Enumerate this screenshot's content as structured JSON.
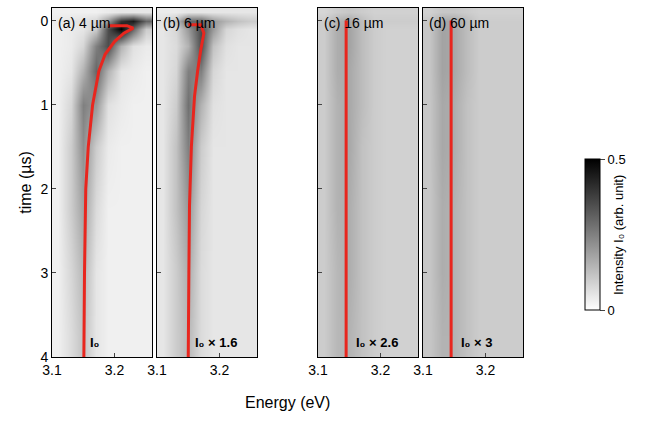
{
  "chart_data": {
    "type": "heatmap",
    "x_label": "Energy (eV)",
    "y_label": "time (µs)",
    "xlim": [
      3.1,
      3.26
    ],
    "xticks": [
      3.1,
      3.2
    ],
    "ylim": [
      4,
      -0.15
    ],
    "yticks": [
      0,
      1,
      2,
      3,
      4
    ],
    "x": [
      3.11,
      3.13,
      3.15,
      3.17,
      3.19,
      3.21,
      3.23,
      3.25
    ],
    "y": [
      -0.1,
      0.0,
      0.1,
      0.3,
      0.6,
      1.0,
      1.5,
      2.25,
      3.0,
      3.75
    ],
    "colorbar": {
      "title": "Intensity I₀ (arb. unit)",
      "range": [
        0,
        0.5
      ],
      "ticks": [
        0,
        0.5
      ],
      "colors": [
        "#ffffff",
        "#000000"
      ]
    },
    "panels": [
      {
        "title": "(a) 4 µm",
        "annotation": "I₀",
        "z": [
          [
            0.03,
            0.03,
            0.03,
            0.03,
            0.04,
            0.05,
            0.05,
            0.05
          ],
          [
            0.04,
            0.05,
            0.06,
            0.08,
            0.2,
            0.4,
            0.45,
            0.3
          ],
          [
            0.03,
            0.04,
            0.05,
            0.1,
            0.35,
            0.5,
            0.3,
            0.1
          ],
          [
            0.03,
            0.04,
            0.08,
            0.25,
            0.35,
            0.15,
            0.06,
            0.04
          ],
          [
            0.03,
            0.05,
            0.15,
            0.3,
            0.15,
            0.05,
            0.04,
            0.03
          ],
          [
            0.03,
            0.08,
            0.25,
            0.2,
            0.06,
            0.04,
            0.03,
            0.03
          ],
          [
            0.03,
            0.1,
            0.22,
            0.1,
            0.04,
            0.03,
            0.03,
            0.03
          ],
          [
            0.03,
            0.1,
            0.18,
            0.07,
            0.03,
            0.03,
            0.03,
            0.03
          ],
          [
            0.03,
            0.08,
            0.14,
            0.05,
            0.03,
            0.03,
            0.03,
            0.03
          ],
          [
            0.03,
            0.07,
            0.12,
            0.05,
            0.03,
            0.03,
            0.03,
            0.03
          ]
        ],
        "line": {
          "color": "#e8261e",
          "x": [
            3.19,
            3.22,
            3.23,
            3.215,
            3.2,
            3.185,
            3.175,
            3.165,
            3.158,
            3.154,
            3.152,
            3.151
          ],
          "values": [
            0.06,
            0.06,
            0.09,
            0.15,
            0.25,
            0.4,
            0.6,
            1.0,
            1.5,
            2.0,
            3.0,
            4.0
          ]
        }
      },
      {
        "title": "(b) 6 µm",
        "annotation": "I₀ × 1.6",
        "tick_labels": "x",
        "z": [
          [
            0.04,
            0.04,
            0.05,
            0.05,
            0.05,
            0.05,
            0.05,
            0.05
          ],
          [
            0.06,
            0.12,
            0.3,
            0.3,
            0.2,
            0.15,
            0.12,
            0.1
          ],
          [
            0.05,
            0.08,
            0.2,
            0.35,
            0.2,
            0.08,
            0.06,
            0.05
          ],
          [
            0.05,
            0.07,
            0.15,
            0.35,
            0.12,
            0.06,
            0.05,
            0.05
          ],
          [
            0.05,
            0.08,
            0.25,
            0.25,
            0.08,
            0.05,
            0.05,
            0.05
          ],
          [
            0.05,
            0.1,
            0.28,
            0.15,
            0.06,
            0.05,
            0.05,
            0.05
          ],
          [
            0.05,
            0.12,
            0.25,
            0.1,
            0.05,
            0.05,
            0.05,
            0.05
          ],
          [
            0.05,
            0.12,
            0.2,
            0.08,
            0.05,
            0.05,
            0.05,
            0.05
          ],
          [
            0.05,
            0.1,
            0.16,
            0.07,
            0.05,
            0.05,
            0.05,
            0.05
          ],
          [
            0.05,
            0.1,
            0.14,
            0.07,
            0.05,
            0.05,
            0.05,
            0.05
          ]
        ],
        "line": {
          "color": "#e8261e",
          "x": [
            3.15,
            3.17,
            3.175,
            3.17,
            3.165,
            3.16,
            3.155,
            3.152,
            3.151,
            3.15
          ],
          "values": [
            0.05,
            0.05,
            0.15,
            0.35,
            0.6,
            0.9,
            1.5,
            2.2,
            3.0,
            4.0
          ]
        }
      },
      {
        "title": "(c) 16 µm",
        "annotation": "I₀ × 2.6",
        "tick_labels": "x",
        "z": [
          [
            0.08,
            0.1,
            0.11,
            0.1,
            0.09,
            0.09,
            0.09,
            0.09
          ],
          [
            0.1,
            0.15,
            0.17,
            0.13,
            0.1,
            0.1,
            0.1,
            0.1
          ],
          [
            0.1,
            0.16,
            0.18,
            0.13,
            0.1,
            0.09,
            0.09,
            0.09
          ],
          [
            0.1,
            0.16,
            0.18,
            0.13,
            0.1,
            0.09,
            0.09,
            0.09
          ],
          [
            0.1,
            0.16,
            0.17,
            0.13,
            0.1,
            0.09,
            0.09,
            0.09
          ],
          [
            0.1,
            0.15,
            0.17,
            0.13,
            0.1,
            0.09,
            0.09,
            0.09
          ],
          [
            0.1,
            0.15,
            0.17,
            0.12,
            0.1,
            0.09,
            0.09,
            0.09
          ],
          [
            0.1,
            0.15,
            0.16,
            0.12,
            0.1,
            0.09,
            0.09,
            0.09
          ],
          [
            0.1,
            0.14,
            0.16,
            0.12,
            0.1,
            0.09,
            0.09,
            0.09
          ],
          [
            0.1,
            0.14,
            0.15,
            0.12,
            0.1,
            0.09,
            0.09,
            0.09
          ]
        ],
        "line": {
          "color": "#e8261e",
          "x": [
            3.145,
            3.145
          ],
          "values": [
            0,
            4
          ]
        }
      },
      {
        "title": "(d) 60 µm",
        "annotation": "I₀ × 3",
        "tick_labels": "x",
        "z": [
          [
            0.09,
            0.11,
            0.11,
            0.1,
            0.09,
            0.09,
            0.09,
            0.09
          ],
          [
            0.11,
            0.17,
            0.17,
            0.13,
            0.1,
            0.1,
            0.1,
            0.1
          ],
          [
            0.11,
            0.18,
            0.17,
            0.13,
            0.1,
            0.1,
            0.1,
            0.1
          ],
          [
            0.11,
            0.18,
            0.17,
            0.13,
            0.1,
            0.1,
            0.1,
            0.1
          ],
          [
            0.11,
            0.18,
            0.17,
            0.13,
            0.1,
            0.1,
            0.1,
            0.1
          ],
          [
            0.11,
            0.17,
            0.16,
            0.12,
            0.1,
            0.1,
            0.1,
            0.1
          ],
          [
            0.11,
            0.17,
            0.16,
            0.12,
            0.1,
            0.1,
            0.1,
            0.1
          ],
          [
            0.11,
            0.16,
            0.15,
            0.12,
            0.1,
            0.1,
            0.1,
            0.1
          ],
          [
            0.11,
            0.16,
            0.15,
            0.12,
            0.1,
            0.1,
            0.1,
            0.1
          ],
          [
            0.11,
            0.15,
            0.15,
            0.12,
            0.1,
            0.1,
            0.1,
            0.1
          ]
        ],
        "line": {
          "color": "#e8261e",
          "x": [
            3.145,
            3.145
          ],
          "values": [
            0,
            4
          ]
        }
      }
    ]
  }
}
